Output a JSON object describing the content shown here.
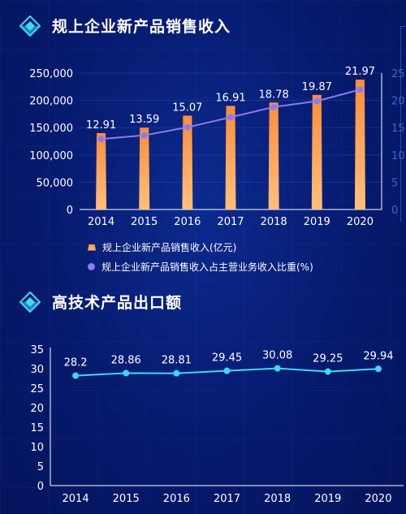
{
  "sections": [
    {
      "title": "规上企业新产品销售收入"
    },
    {
      "title": "高技术产品出口额"
    }
  ],
  "legend": {
    "bar_label": "规上企业新产品销售收入(亿元)",
    "line_label": "规上企业新产品销售收入占主营业务收入比重(%)"
  },
  "colors": {
    "bar": "#ff9a4a",
    "line1": "#8a7cf0",
    "line2": "#3fd8f0",
    "icon": "#3fd8f0"
  },
  "chart_data": [
    {
      "type": "bar",
      "categories": [
        "2014",
        "2015",
        "2016",
        "2017",
        "2018",
        "2019",
        "2020"
      ],
      "series": [
        {
          "name": "规上企业新产品销售收入(亿元)",
          "type": "bar",
          "values": [
            140000,
            150000,
            172000,
            190000,
            196000,
            210000,
            238000
          ]
        },
        {
          "name": "规上企业新产品销售收入占主营业务收入比重(%)",
          "type": "line",
          "values": [
            12.91,
            13.59,
            15.07,
            16.91,
            18.78,
            19.87,
            21.97
          ]
        }
      ],
      "yticks": [
        "0",
        "50,000",
        "100,000",
        "150,000",
        "200,000",
        "250,000"
      ],
      "y2ticks": [
        "0",
        "5",
        "10",
        "15",
        "20",
        "25"
      ],
      "ylim": [
        0,
        250000
      ],
      "y2lim": [
        0,
        25
      ],
      "data_labels": [
        "12.91",
        "13.59",
        "15.07",
        "16.91",
        "18.78",
        "19.87",
        "21.97"
      ]
    },
    {
      "type": "line",
      "categories": [
        "2014",
        "2015",
        "2016",
        "2017",
        "2018",
        "2019",
        "2020"
      ],
      "values": [
        28.2,
        28.86,
        28.81,
        29.45,
        30.08,
        29.25,
        29.94
      ],
      "yticks": [
        "0",
        "5",
        "10",
        "15",
        "20",
        "25",
        "30",
        "35"
      ],
      "ylim": [
        0,
        35
      ],
      "data_labels": [
        "28.2",
        "28.86",
        "28.81",
        "29.45",
        "30.08",
        "29.25",
        "29.94"
      ]
    }
  ]
}
